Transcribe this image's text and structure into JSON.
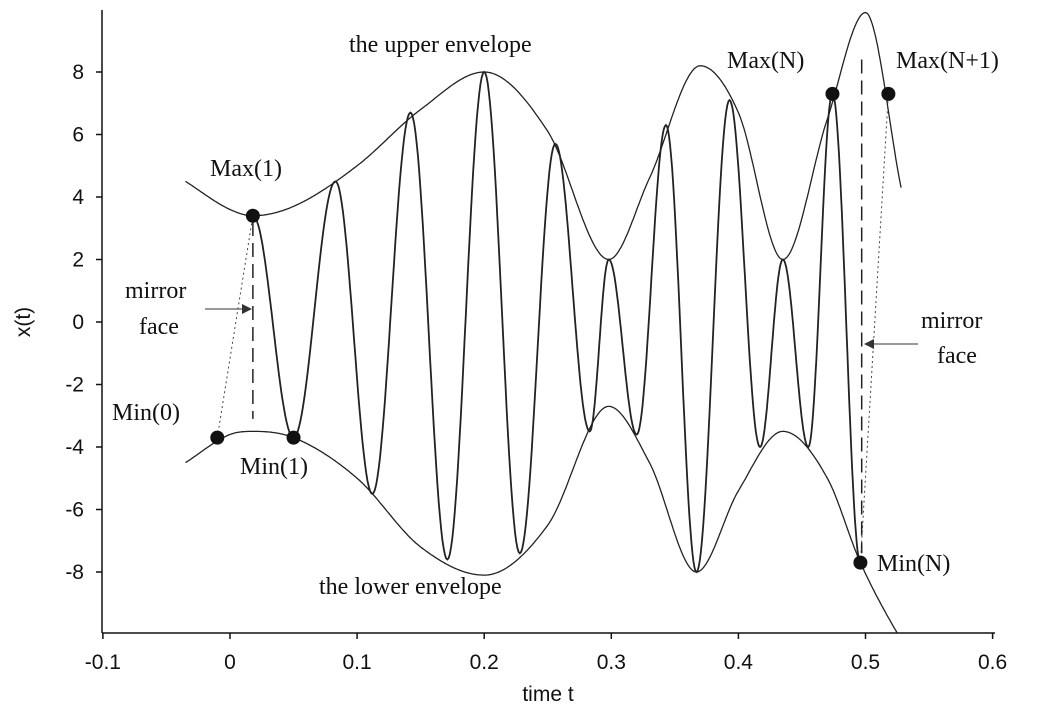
{
  "chart_data": {
    "type": "line",
    "xlabel": "time t",
    "ylabel": "x(t)",
    "xlim": [
      -0.1,
      0.6
    ],
    "ylim": [
      -9.8,
      9.8
    ],
    "x_ticks": [
      "-0.1",
      "0",
      "0.1",
      "0.2",
      "0.3",
      "0.4",
      "0.5",
      "0.6"
    ],
    "y_ticks": [
      "8",
      "6",
      "4",
      "2",
      "0",
      "-2",
      "-4",
      "-6",
      "-8"
    ],
    "grid": false,
    "legend": "none",
    "series": [
      {
        "role": "signal",
        "x": [
          0.018,
          0.05,
          0.083,
          0.112,
          0.142,
          0.171,
          0.2,
          0.228,
          0.256,
          0.283,
          0.298,
          0.32,
          0.343,
          0.367,
          0.393,
          0.417,
          0.435,
          0.455,
          0.474,
          0.496
        ],
        "y": [
          3.4,
          -3.7,
          4.5,
          -5.5,
          6.7,
          -7.6,
          8.0,
          -7.4,
          5.7,
          -3.5,
          2.0,
          -3.6,
          6.3,
          -8.0,
          7.1,
          -4.0,
          2.0,
          -4.0,
          7.3,
          -7.7
        ]
      },
      {
        "role": "upper-envelope",
        "x": [
          -0.035,
          0.0,
          0.018,
          0.05,
          0.1,
          0.15,
          0.2,
          0.25,
          0.298,
          0.33,
          0.37,
          0.4,
          0.435,
          0.47,
          0.5,
          0.528
        ],
        "y": [
          4.5,
          3.6,
          3.4,
          3.7,
          5.0,
          6.8,
          8.0,
          6.1,
          2.0,
          4.6,
          8.2,
          6.7,
          2.0,
          6.5,
          9.9,
          4.3
        ]
      },
      {
        "role": "lower-envelope",
        "x": [
          -0.035,
          0.0,
          0.018,
          0.05,
          0.1,
          0.15,
          0.2,
          0.25,
          0.298,
          0.33,
          0.367,
          0.4,
          0.435,
          0.47,
          0.496,
          0.53,
          0.558
        ],
        "y": [
          -4.5,
          -3.6,
          -3.5,
          -3.7,
          -5.0,
          -7.2,
          -8.1,
          -6.5,
          -2.7,
          -4.5,
          -8.0,
          -5.4,
          -3.5,
          -5.0,
          -7.7,
          -10.3,
          -12.0
        ]
      }
    ],
    "points": [
      {
        "label": "Max(1)",
        "x": 0.018,
        "y": 3.4
      },
      {
        "label": "Min(0)",
        "x": -0.01,
        "y": -3.7
      },
      {
        "label": "Min(1)",
        "x": 0.05,
        "y": -3.7
      },
      {
        "label": "Max(N)",
        "x": 0.474,
        "y": 7.3
      },
      {
        "label": "Max(N+1)",
        "x": 0.518,
        "y": 7.3
      },
      {
        "label": "Min(N)",
        "x": 0.496,
        "y": -7.7
      }
    ],
    "mirror_lines": [
      {
        "x": 0.018,
        "y_top": 3.2,
        "y_bottom": -3.1
      },
      {
        "x": 0.497,
        "y_top": 8.4,
        "y_bottom": -7.4
      }
    ],
    "annotations": {
      "upper_envelope": "the upper envelope",
      "lower_envelope": "the lower envelope",
      "mirror_left_1": "mirror",
      "mirror_left_2": "face",
      "mirror_right_1": "mirror",
      "mirror_right_2": "face"
    }
  }
}
